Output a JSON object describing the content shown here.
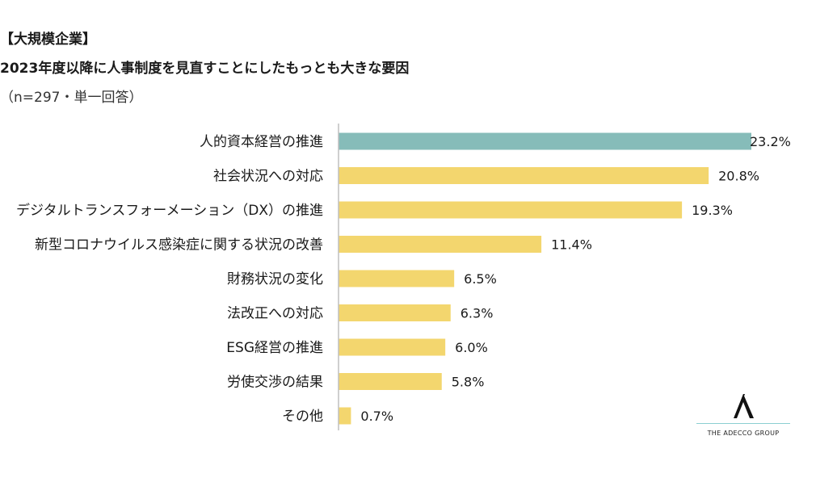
{
  "header": {
    "title1": "【大規模企業】",
    "title2": "2023年度以降に人事制度を見直すことにしたもっとも大きな要因",
    "title3": "（n=297・単一回答）"
  },
  "colors": {
    "highlight": "#86bcb9",
    "bar": "#f3d66e",
    "axis": "#bfbfbf"
  },
  "chart_data": {
    "type": "bar",
    "orientation": "horizontal",
    "categories": [
      "人的資本経営の推進",
      "社会状況への対応",
      "デジタルトランスフォーメーション（DX）の推進",
      "新型コロナウイルス感染症に関する状況の改善",
      "財務状況の変化",
      "法改正への対応",
      "ESG経営の推進",
      "労使交渉の結果",
      "その他"
    ],
    "values": [
      23.2,
      20.8,
      19.3,
      11.4,
      6.5,
      6.3,
      6.0,
      5.8,
      0.7
    ],
    "labels": [
      "23.2%",
      "20.8%",
      "19.3%",
      "11.4%",
      "6.5%",
      "6.3%",
      "6.0%",
      "5.8%",
      "0.7%"
    ],
    "highlight_index": 0,
    "xlim": [
      0,
      23.2
    ],
    "unit": "%"
  },
  "logo": {
    "text": "THE ADECCO GROUP",
    "mark": "A"
  }
}
